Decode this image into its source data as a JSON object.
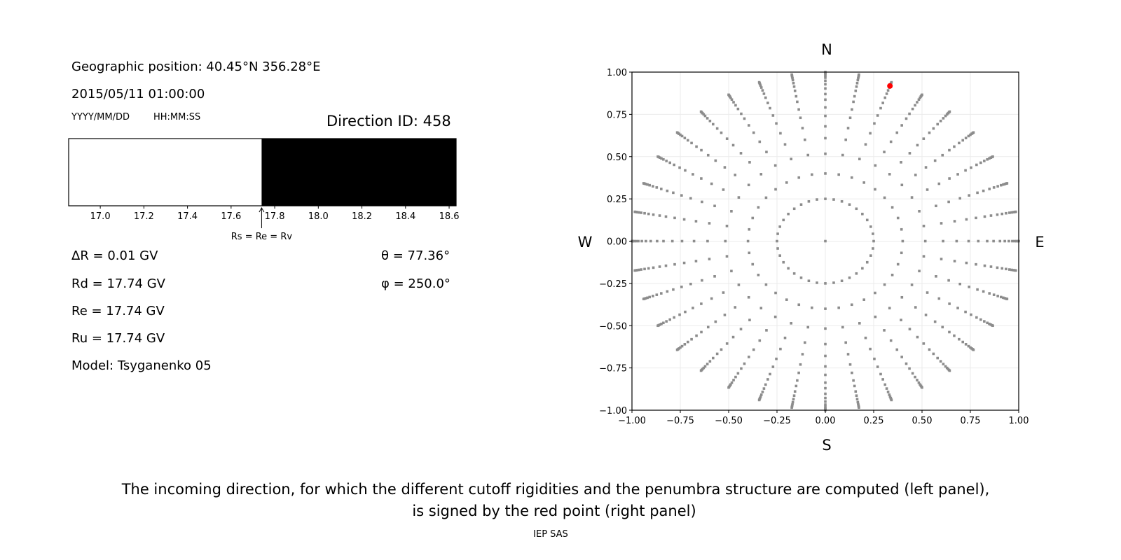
{
  "info": {
    "geo_position": "Geographic position: 40.45°N 356.28°E",
    "datetime": "2015/05/11 01:00:00",
    "date_format": "YYYY/MM/DD",
    "time_format": "HH:MM:SS",
    "direction_id": "Direction ID: 458",
    "delta_r": "ΔR = 0.01 GV",
    "rd": "Rd = 17.74 GV",
    "re": "Re = 17.74 GV",
    "ru": "Ru = 17.74 GV",
    "model": "Model: Tsyganenko 05",
    "theta": "θ = 77.36°",
    "phi": "φ = 250.0°"
  },
  "caption": {
    "line1": "The incoming direction, for which the different cutoff rigidities and the penumbra structure are computed (left panel),",
    "line2": "is signed by the red point (right panel)",
    "credit": "IEP SAS"
  },
  "chart_data": [
    {
      "type": "bar",
      "title": "",
      "xlim": [
        16.855,
        18.632
      ],
      "x_ticks": [
        "17.0",
        "17.2",
        "17.4",
        "17.6",
        "17.8",
        "18.0",
        "18.2",
        "18.4",
        "18.6"
      ],
      "x_tick_values": [
        17.0,
        17.2,
        17.4,
        17.6,
        17.8,
        18.0,
        18.2,
        18.4,
        18.6
      ],
      "segments": [
        {
          "from": 16.855,
          "to": 17.74,
          "state": "forbidden",
          "color": "#ffffff"
        },
        {
          "from": 17.74,
          "to": 18.632,
          "state": "allowed",
          "color": "#000000"
        }
      ],
      "annotation": {
        "text": "Rs = Re = Rv",
        "x": 17.74
      },
      "grid": false
    },
    {
      "type": "scatter",
      "xlim": [
        -1,
        1
      ],
      "ylim": [
        -1,
        1
      ],
      "x_ticks": [
        "−1.00",
        "−0.75",
        "−0.50",
        "−0.25",
        "0.00",
        "0.25",
        "0.50",
        "0.75",
        "1.00"
      ],
      "y_ticks": [
        "−1.00",
        "−0.75",
        "−0.50",
        "−0.25",
        "0.00",
        "0.25",
        "0.50",
        "0.75",
        "1.00"
      ],
      "tick_values": [
        -1,
        -0.75,
        -0.5,
        -0.25,
        0,
        0.25,
        0.5,
        0.75,
        1
      ],
      "compass": {
        "north": "N",
        "south": "S",
        "west": "W",
        "east": "E"
      },
      "grid": true,
      "directions": {
        "color": "#8c8c8c",
        "azimuth_step_deg": 10,
        "center_point": true,
        "inner_ring_radius": 0.25,
        "ray_radii": [
          0.4,
          0.517,
          0.609,
          0.679,
          0.741,
          0.791,
          0.837,
          0.87,
          0.903,
          0.928,
          0.949,
          0.967,
          0.979,
          0.988,
          0.995,
          1.0
        ]
      },
      "selected": {
        "x": 0.334,
        "y": 0.918,
        "color": "#ff0000"
      }
    }
  ]
}
